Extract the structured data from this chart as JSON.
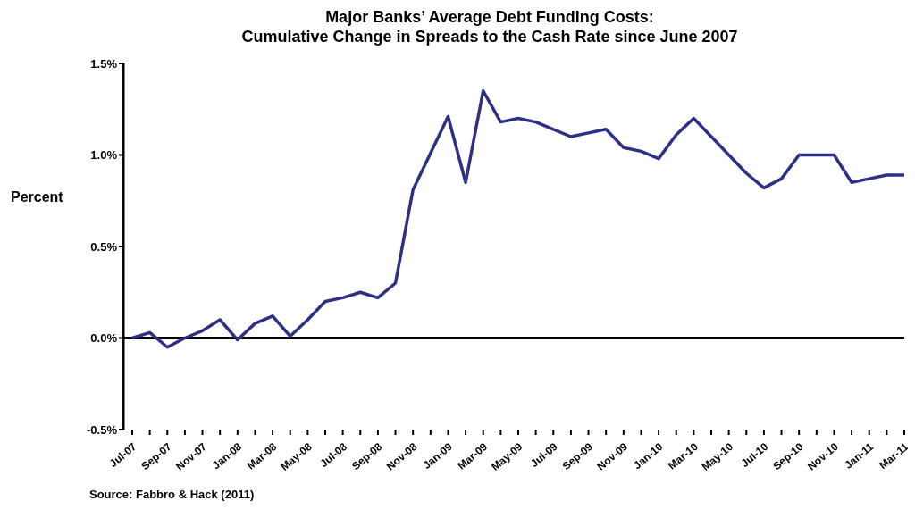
{
  "chart_data": {
    "type": "line",
    "title": "Major Banks’ Average Debt Funding Costs:\nCumulative Change in Spreads to the Cash Rate since June 2007",
    "ylabel": "Percent",
    "annotations": [
      "Source: Fabbro & Hack (2011)"
    ],
    "categories": [
      "Jul-07",
      null,
      "Sep-07",
      null,
      "Nov-07",
      null,
      "Jan-08",
      null,
      "Mar-08",
      null,
      "May-08",
      null,
      "Jul-08",
      null,
      "Sep-08",
      null,
      "Nov-08",
      null,
      "Jan-09",
      null,
      "Mar-09",
      null,
      "May-09",
      null,
      "Jul-09",
      null,
      "Sep-09",
      null,
      "Nov-09",
      null,
      "Jan-10",
      null,
      "Mar-10",
      null,
      "May-10",
      null,
      "Jul-10",
      null,
      "Sep-10",
      null,
      "Nov-10",
      null,
      "Jan-11",
      null,
      "Mar-11"
    ],
    "series": [
      {
        "color": "#2e3084",
        "values": [
          0,
          0.03,
          -0.05,
          0,
          0.04,
          0.1,
          -0.01,
          0.08,
          0.12,
          0.01,
          0.1,
          0.2,
          0.22,
          0.25,
          0.22,
          0.3,
          0.81,
          1.01,
          1.21,
          0.85,
          1.35,
          1.18,
          1.2,
          1.18,
          1.14,
          1.1,
          1.12,
          1.14,
          1.04,
          1.02,
          0.98,
          1.11,
          1.2,
          1.1,
          1.0,
          0.9,
          0.82,
          0.87,
          1.0,
          1.0,
          1.0,
          0.85,
          0.87,
          0.89,
          0.89
        ]
      }
    ],
    "ylim": [
      -0.5,
      1.5
    ],
    "yticks": [
      {
        "value": -0.5,
        "label": "-0.5%"
      },
      {
        "value": 0,
        "label": "0.0%"
      },
      {
        "value": 0.5,
        "label": "0.5%"
      },
      {
        "value": 1,
        "label": "1.0%"
      },
      {
        "value": 1.5,
        "label": "1.5%"
      }
    ],
    "ref_lines": [
      {
        "axis": "y",
        "value": 0,
        "color": "#000000"
      }
    ],
    "grid": false,
    "legend": false,
    "marker": "none",
    "line_style": "solid"
  }
}
